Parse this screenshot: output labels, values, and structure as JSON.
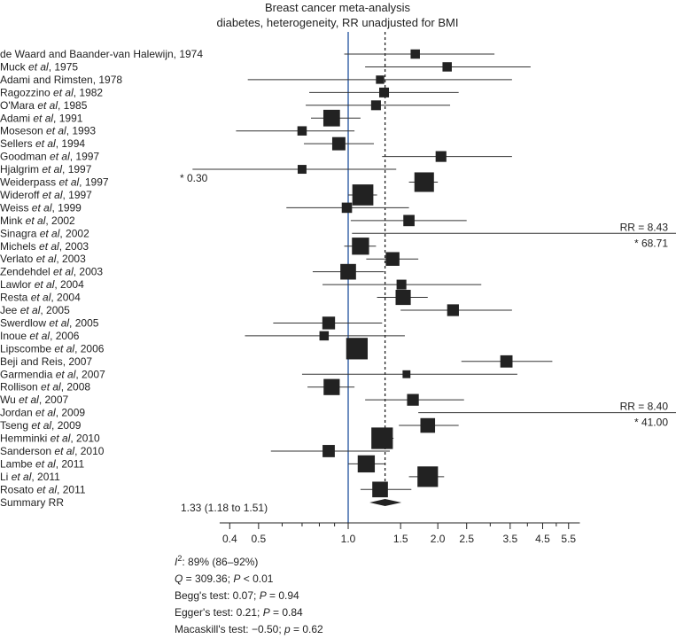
{
  "chart_data": {
    "type": "forest",
    "title_line1": "Breast cancer meta-analysis",
    "title_line2": "diabetes, heterogeneity, RR unadjusted for BMI",
    "xscale": "log",
    "xlim": [
      0.35,
      6.0
    ],
    "reference_value": 1.0,
    "summary_value": 1.33,
    "ticks": [
      {
        "value": 0.4,
        "label": "0.4"
      },
      {
        "value": 0.5,
        "label": "0.5"
      },
      {
        "value": 1.0,
        "label": "1.0"
      },
      {
        "value": 1.5,
        "label": "1.5"
      },
      {
        "value": 2.0,
        "label": "2.0"
      },
      {
        "value": 2.5,
        "label": "2.5"
      },
      {
        "value": 3.5,
        "label": "3.5"
      },
      {
        "value": 4.5,
        "label": "4.5"
      },
      {
        "value": 5.5,
        "label": "5.5"
      }
    ],
    "minor_ticks": [
      0.6,
      0.7,
      0.8,
      0.9,
      3.0,
      4.0,
      5.0
    ],
    "studies": [
      {
        "name": "de Waard and Baander-van Halewijn, 1974",
        "rr": 1.68,
        "lo": 0.97,
        "hi": 3.1,
        "weight": 0.5
      },
      {
        "name": "Muck |et al|, 1975",
        "rr": 2.15,
        "lo": 1.14,
        "hi": 4.1,
        "weight": 0.5
      },
      {
        "name": "Adami and Rimsten, 1978",
        "rr": 1.28,
        "lo": 0.46,
        "hi": 3.55,
        "weight": 0.4
      },
      {
        "name": "Ragozzino |et al|, 1982",
        "rr": 1.32,
        "lo": 0.74,
        "hi": 2.35,
        "weight": 0.55
      },
      {
        "name": "O'Mara |et al|, 1985",
        "rr": 1.24,
        "lo": 0.72,
        "hi": 2.2,
        "weight": 0.55
      },
      {
        "name": "Adami |et al|, 1991",
        "rr": 0.88,
        "lo": 0.75,
        "hi": 1.1,
        "weight": 1.25
      },
      {
        "name": "Moseson |et al|, 1993",
        "rr": 0.7,
        "lo": 0.42,
        "hi": 1.05,
        "weight": 0.5
      },
      {
        "name": "Sellers |et al|, 1994",
        "rr": 0.93,
        "lo": 0.71,
        "hi": 1.22,
        "weight": 0.9
      },
      {
        "name": "Goodman |et al|, 1997",
        "rr": 2.05,
        "lo": 1.3,
        "hi": 3.55,
        "weight": 0.65
      },
      {
        "name": "Hjalgrim |et al|, 1997",
        "rr": 0.7,
        "lo": 0.3,
        "hi": 1.45,
        "weight": 0.45
      },
      {
        "name": "Weiderpass |et al|, 1997",
        "rr": 1.8,
        "lo": 1.6,
        "hi": 2.0,
        "weight": 1.55
      },
      {
        "name": "Wideroff |et al|, 1997",
        "rr": 1.12,
        "lo": 1.0,
        "hi": 1.25,
        "weight": 1.7
      },
      {
        "name": "Weiss |et al|, 1999",
        "rr": 0.99,
        "lo": 0.62,
        "hi": 1.6,
        "weight": 0.6
      },
      {
        "name": "Mink |et al|, 2002",
        "rr": 1.6,
        "lo": 1.02,
        "hi": 2.5,
        "weight": 0.7
      },
      {
        "name": "Sinagra |et al|, 2002",
        "rr": 8.43,
        "lo": 1.03,
        "hi": 68.71,
        "weight": 0.0
      },
      {
        "name": "Michels |et al|, 2003",
        "rr": 1.1,
        "lo": 0.97,
        "hi": 1.24,
        "weight": 1.3
      },
      {
        "name": "Verlato |et al|, 2003",
        "rr": 1.41,
        "lo": 1.15,
        "hi": 1.72,
        "weight": 0.95
      },
      {
        "name": "Zendehdel |et al|, 2003",
        "rr": 1.0,
        "lo": 0.76,
        "hi": 1.32,
        "weight": 1.15
      },
      {
        "name": "Lawlor |et al|, 2004",
        "rr": 1.51,
        "lo": 0.82,
        "hi": 2.8,
        "weight": 0.55
      },
      {
        "name": "Resta |et al|, 2004",
        "rr": 1.53,
        "lo": 1.25,
        "hi": 1.85,
        "weight": 1.1
      },
      {
        "name": "Jee |et al|, 2005",
        "rr": 2.25,
        "lo": 1.5,
        "hi": 3.55,
        "weight": 0.75
      },
      {
        "name": "Swerdlow |et al|, 2005",
        "rr": 0.86,
        "lo": 0.56,
        "hi": 1.3,
        "weight": 0.85
      },
      {
        "name": "Inoue |et al|, 2006",
        "rr": 0.83,
        "lo": 0.45,
        "hi": 1.55,
        "weight": 0.5
      },
      {
        "name": "Lipscombe |et al|, 2006",
        "rr": 1.07,
        "lo": 1.0,
        "hi": 1.14,
        "weight": 1.75
      },
      {
        "name": "Beji and Reis, 2007",
        "rr": 3.4,
        "lo": 2.4,
        "hi": 4.85,
        "weight": 0.8
      },
      {
        "name": "Garmendia |et al|, 2007",
        "rr": 1.57,
        "lo": 0.7,
        "hi": 3.7,
        "weight": 0.35
      },
      {
        "name": "Rollison |et al|, 2008",
        "rr": 0.88,
        "lo": 0.73,
        "hi": 1.05,
        "weight": 1.2
      },
      {
        "name": "Wu |et al|, 2007",
        "rr": 1.65,
        "lo": 1.14,
        "hi": 2.45,
        "weight": 0.75
      },
      {
        "name": "Jordan |et al|, 2009",
        "rr": 8.4,
        "lo": 1.72,
        "hi": 41.0,
        "weight": 0.0
      },
      {
        "name": "Tseng |et al|, 2009",
        "rr": 1.85,
        "lo": 1.48,
        "hi": 2.35,
        "weight": 1.05
      },
      {
        "name": "Hemminki |et al|, 2010",
        "rr": 1.3,
        "lo": 1.2,
        "hi": 1.42,
        "weight": 1.75
      },
      {
        "name": "Sanderson |et al|, 2010",
        "rr": 0.86,
        "lo": 0.55,
        "hi": 1.38,
        "weight": 0.8
      },
      {
        "name": "Lambe |et al|, 2011",
        "rr": 1.15,
        "lo": 1.0,
        "hi": 1.33,
        "weight": 1.3
      },
      {
        "name": "Li |et al|, 2011",
        "rr": 1.85,
        "lo": 1.6,
        "hi": 2.1,
        "weight": 1.65
      },
      {
        "name": "Rosato |et al|, 2011",
        "rr": 1.28,
        "lo": 1.1,
        "hi": 1.63,
        "weight": 1.15
      }
    ],
    "summary_label": "Summary RR",
    "summary": {
      "rr": 1.33,
      "lo": 1.18,
      "hi": 1.51,
      "text": "1.33 (1.18 to 1.51)"
    },
    "annotations": [
      {
        "text": "* 0.30",
        "row": 9
      },
      {
        "text": "RR = 8.43",
        "row": 14
      },
      {
        "text": "* 68.71",
        "row": 14
      },
      {
        "text": "RR = 8.40",
        "row": 28
      },
      {
        "text": "* 41.00",
        "row": 28
      }
    ],
    "stats": [
      {
        "prefix": "I",
        "sup": "2",
        "rest": ": 89% (86–92%)"
      },
      {
        "prefix": "Q",
        "sup": "",
        "rest": " = 309.36; ",
        "italic2": "P",
        "rest2": " < 0.01"
      },
      {
        "prefix": "",
        "sup": "",
        "rest": "Begg's test: 0.07; ",
        "italic2": "P",
        "rest2": " = 0.94"
      },
      {
        "prefix": "",
        "sup": "",
        "rest": "Egger's test: 0.21; ",
        "italic2": "P",
        "rest2": " = 0.84"
      },
      {
        "prefix": "",
        "sup": "",
        "rest": "Macaskill's test: −0.50; ",
        "italic2": "p",
        "rest2": " = 0.62"
      }
    ],
    "colors": {
      "reference": "#4a72b0",
      "marker": "#222222",
      "line": "#333333"
    }
  }
}
